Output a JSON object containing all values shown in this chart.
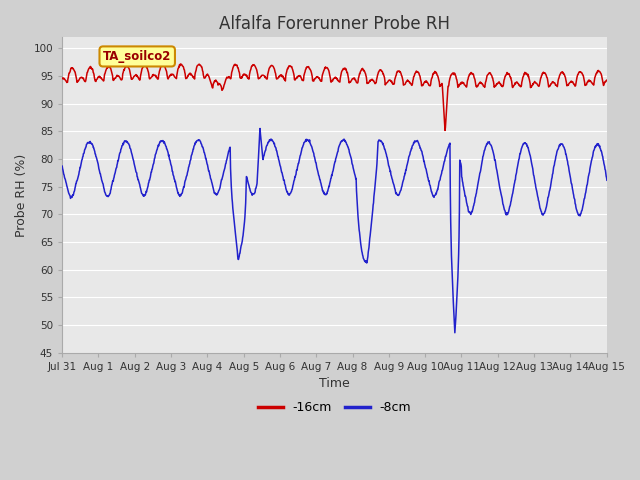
{
  "title": "Alfalfa Forerunner Probe RH",
  "xlabel": "Time",
  "ylabel": "Probe RH (%)",
  "ylim": [
    45,
    102
  ],
  "yticks": [
    45,
    50,
    55,
    60,
    65,
    70,
    75,
    80,
    85,
    90,
    95,
    100
  ],
  "fig_bg_color": "#d0d0d0",
  "plot_bg_color": "#e8e8e8",
  "grid_color": "#ffffff",
  "line_color_red": "#cc0000",
  "line_color_blue": "#2222cc",
  "legend_label_red": "-16cm",
  "legend_label_blue": "-8cm",
  "annotation_text": "TA_soilco2",
  "annotation_bg": "#ffff99",
  "annotation_border": "#cc8800",
  "x_tick_labels": [
    "Jul 31",
    "Aug 1",
    "Aug 2",
    "Aug 3",
    "Aug 4",
    "Aug 5",
    "Aug 6",
    "Aug 7",
    "Aug 8",
    "Aug 9",
    "Aug 10",
    "Aug 11",
    "Aug 12",
    "Aug 13",
    "Aug 14",
    "Aug 15"
  ],
  "title_fontsize": 12,
  "axis_fontsize": 9,
  "tick_fontsize": 7.5
}
